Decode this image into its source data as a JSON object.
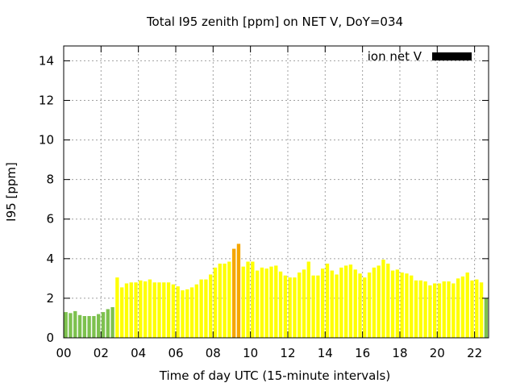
{
  "chart_data": {
    "type": "bar",
    "title": "Total I95 zenith [ppm] on NET V, DoY=034",
    "xlabel": "Time of day UTC (15-minute intervals)",
    "ylabel": "I95 [ppm]",
    "xlim": [
      0,
      22.75
    ],
    "ylim": [
      0,
      14.75
    ],
    "x_interval_hours": 0.25,
    "x_ticks": [
      "00",
      "02",
      "04",
      "06",
      "08",
      "10",
      "12",
      "14",
      "16",
      "18",
      "20",
      "22"
    ],
    "x_tick_values": [
      0,
      2,
      4,
      6,
      8,
      10,
      12,
      14,
      16,
      18,
      20,
      22
    ],
    "y_ticks": [
      "0",
      "2",
      "4",
      "6",
      "8",
      "10",
      "12",
      "14"
    ],
    "y_tick_values": [
      0,
      2,
      4,
      6,
      8,
      10,
      12,
      14
    ],
    "grid": true,
    "legend_position": "top-right",
    "series": [
      {
        "name": "ion net V",
        "legend_color": "#000000",
        "values": [
          1.3,
          1.25,
          1.35,
          1.15,
          1.1,
          1.1,
          1.1,
          1.2,
          1.3,
          1.45,
          1.55,
          3.05,
          2.55,
          2.75,
          2.8,
          2.8,
          2.9,
          2.85,
          2.95,
          2.8,
          2.8,
          2.8,
          2.8,
          2.7,
          2.6,
          2.4,
          2.45,
          2.55,
          2.7,
          2.95,
          2.95,
          3.2,
          3.55,
          3.75,
          3.75,
          3.85,
          4.5,
          4.75,
          3.6,
          3.85,
          3.85,
          3.4,
          3.55,
          3.5,
          3.6,
          3.65,
          3.35,
          3.15,
          3.05,
          3.05,
          3.3,
          3.45,
          3.85,
          3.15,
          3.15,
          3.5,
          3.75,
          3.4,
          3.2,
          3.55,
          3.65,
          3.7,
          3.45,
          3.25,
          3.05,
          3.3,
          3.55,
          3.65,
          3.95,
          3.75,
          3.4,
          3.45,
          3.3,
          3.25,
          3.15,
          2.9,
          2.9,
          2.85,
          2.65,
          2.75,
          2.75,
          2.85,
          2.85,
          2.75,
          3.0,
          3.1,
          3.3,
          2.9,
          2.95,
          2.8,
          2.0
        ]
      }
    ],
    "level_colors": {
      "low": "#7dc14e",
      "moderate": "#ffff00",
      "elevated": "#f5a600"
    },
    "level_thresholds": {
      "moderate_from": 2.0,
      "elevated_from": 4.3
    }
  }
}
